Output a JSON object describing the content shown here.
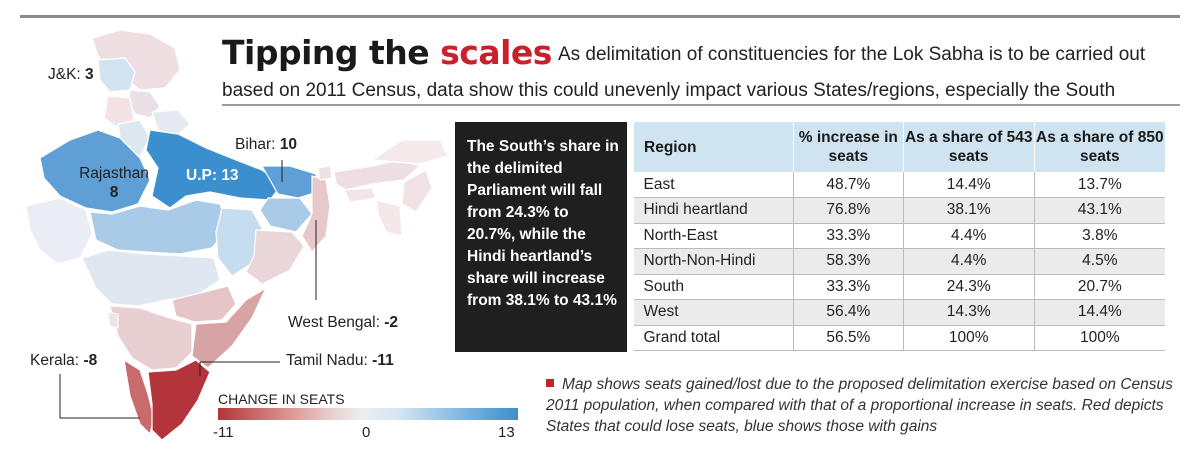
{
  "title": {
    "dark": "Tipping the ",
    "red": "scales",
    "subtitle_line1": "As delimitation of constituencies for the Lok Sabha is to be carried out",
    "subtitle_line2": "based on 2011 Census, data show this could unevenly impact various States/regions, especially the South"
  },
  "callout": {
    "text": "The South’s share in the delimited Parliament will fall from 24.3% to 20.7%, while the Hindi heartland’s share will increase from 38.1% to 43.1%"
  },
  "map": {
    "labels": [
      {
        "name": "J&K:",
        "value": "3"
      },
      {
        "name": "Bihar:",
        "value": "10"
      },
      {
        "name": "Rajasthan",
        "value": "8"
      },
      {
        "name": "U.P:",
        "value": "13"
      },
      {
        "name": "West Bengal:",
        "value": "-2"
      },
      {
        "name": "Kerala:",
        "value": "-8"
      },
      {
        "name": "Tamil Nadu:",
        "value": "-11"
      }
    ],
    "legend": {
      "title": "CHANGE IN SEATS",
      "min_label": "-11",
      "mid_label": "0",
      "max_label": "13",
      "min_color": "#b3343a",
      "max_color": "#3c8fce"
    }
  },
  "footnote": "Map shows seats gained/lost due to the proposed delimitation exercise based on Census 2011 population, when compared with that of a proportional increase in seats. Red depicts States that could lose seats, blue shows those with gains",
  "chart_data": {
    "type": "table",
    "title": "Tipping the scales",
    "columns": [
      "Region",
      "% increase in seats",
      "As a share of 543 seats",
      "As a share of 850 seats"
    ],
    "rows": [
      [
        "East",
        "48.7%",
        "14.4%",
        "13.7%"
      ],
      [
        "Hindi heartland",
        "76.8%",
        "38.1%",
        "43.1%"
      ],
      [
        "North-East",
        "33.3%",
        "4.4%",
        "3.8%"
      ],
      [
        "North-Non-Hindi",
        "58.3%",
        "4.4%",
        "4.5%"
      ],
      [
        "South",
        "33.3%",
        "24.3%",
        "20.7%"
      ],
      [
        "West",
        "56.4%",
        "14.3%",
        "14.4%"
      ],
      [
        "Grand total",
        "56.5%",
        "100%",
        "100%"
      ]
    ],
    "state_seat_change": [
      {
        "state": "J&K",
        "change": 3
      },
      {
        "state": "Bihar",
        "change": 10
      },
      {
        "state": "Rajasthan",
        "change": 8
      },
      {
        "state": "U.P",
        "change": 13
      },
      {
        "state": "West Bengal",
        "change": -2
      },
      {
        "state": "Kerala",
        "change": -8
      },
      {
        "state": "Tamil Nadu",
        "change": -11
      }
    ]
  }
}
